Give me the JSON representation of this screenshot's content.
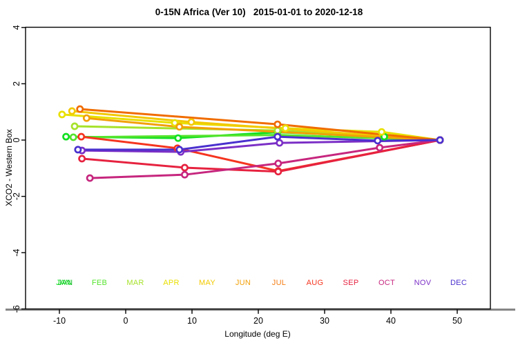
{
  "title": "0-15N Africa (Ver 10)   2015-01-01 to 2020-12-18",
  "chart_data": {
    "type": "line",
    "title": "0-15N Africa (Ver 10)   2015-01-01 to 2020-12-18",
    "xlabel": "Longitude (deg E)",
    "ylabel": "XCO2 - Western Box",
    "xlim": [
      -15,
      55
    ],
    "ylim": [
      -6,
      4
    ],
    "x_ticks": [
      -10,
      0,
      10,
      20,
      30,
      40,
      50
    ],
    "y_ticks": [
      4,
      2,
      0,
      -2,
      -4,
      -6
    ],
    "grid": false,
    "marker": "open-circle",
    "legend_position": "inside-bottom",
    "axis_line_color": "#808080",
    "series": [
      {
        "name": "JAN",
        "color": "#12E022",
        "points": [
          [
            -9.0,
            0.12
          ],
          [
            7.9,
            0.07
          ],
          [
            22.9,
            0.28
          ],
          [
            39.0,
            0.12
          ],
          [
            47.4,
            0.0
          ]
        ]
      },
      {
        "name": "FEB",
        "color": "#54E42C",
        "points": [
          [
            -7.9,
            0.1
          ],
          [
            22.9,
            0.18
          ],
          [
            47.4,
            0.0
          ]
        ]
      },
      {
        "name": "MAR",
        "color": "#A6E22A",
        "points": [
          [
            -7.7,
            0.49
          ],
          [
            22.9,
            0.34
          ],
          [
            47.4,
            0.0
          ]
        ]
      },
      {
        "name": "APR",
        "color": "#E8E000",
        "points": [
          [
            -9.6,
            0.91
          ],
          [
            7.4,
            0.61
          ],
          [
            24.1,
            0.42
          ],
          [
            38.6,
            0.29
          ],
          [
            47.4,
            0.0
          ]
        ]
      },
      {
        "name": "MAY",
        "color": "#F2C900",
        "points": [
          [
            -8.1,
            1.03
          ],
          [
            9.9,
            0.64
          ],
          [
            47.4,
            0.0
          ]
        ]
      },
      {
        "name": "JUN",
        "color": "#F2A007",
        "points": [
          [
            -5.9,
            0.78
          ],
          [
            8.1,
            0.47
          ],
          [
            47.4,
            0.0
          ]
        ]
      },
      {
        "name": "JUL",
        "color": "#F06C00",
        "points": [
          [
            -6.9,
            1.1
          ],
          [
            22.9,
            0.56
          ],
          [
            47.4,
            0.0
          ]
        ]
      },
      {
        "name": "AUG",
        "color": "#F5341F",
        "points": [
          [
            -6.7,
            0.12
          ],
          [
            7.8,
            -0.29
          ],
          [
            23.0,
            -1.1
          ],
          [
            47.4,
            0.0
          ]
        ]
      },
      {
        "name": "SEP",
        "color": "#E6223F",
        "points": [
          [
            -6.6,
            -0.66
          ],
          [
            8.9,
            -0.98
          ],
          [
            23.0,
            -1.12
          ],
          [
            47.4,
            0.0
          ]
        ]
      },
      {
        "name": "OCT",
        "color": "#C6267E",
        "points": [
          [
            -5.4,
            -1.35
          ],
          [
            8.9,
            -1.23
          ],
          [
            23.0,
            -0.83
          ],
          [
            38.3,
            -0.27
          ],
          [
            47.4,
            0.0
          ]
        ]
      },
      {
        "name": "NOV",
        "color": "#7B2FC6",
        "points": [
          [
            -6.6,
            -0.37
          ],
          [
            8.3,
            -0.42
          ],
          [
            23.2,
            -0.1
          ],
          [
            47.4,
            0.0
          ]
        ]
      },
      {
        "name": "DEC",
        "color": "#4A30CE",
        "points": [
          [
            -7.2,
            -0.34
          ],
          [
            8.1,
            -0.34
          ],
          [
            22.9,
            0.12
          ],
          [
            38.0,
            -0.02
          ],
          [
            47.4,
            0.0
          ]
        ]
      }
    ],
    "months_legend": [
      {
        "label": "JAN",
        "color": "#12E022",
        "doubled": true,
        "shadow_color": "#00B818"
      },
      {
        "label": "FEB",
        "color": "#54E42C"
      },
      {
        "label": "MAR",
        "color": "#A6E22A"
      },
      {
        "label": "APR",
        "color": "#E8E000"
      },
      {
        "label": "MAY",
        "color": "#F2C900"
      },
      {
        "label": "JUN",
        "color": "#F2A007"
      },
      {
        "label": "JUL",
        "color": "#F57D14"
      },
      {
        "label": "AUG",
        "color": "#F5341F"
      },
      {
        "label": "SEP",
        "color": "#E6223F"
      },
      {
        "label": "OCT",
        "color": "#C6267E"
      },
      {
        "label": "NOV",
        "color": "#7B2FC6"
      },
      {
        "label": "DEC",
        "color": "#4A30CE"
      }
    ]
  }
}
